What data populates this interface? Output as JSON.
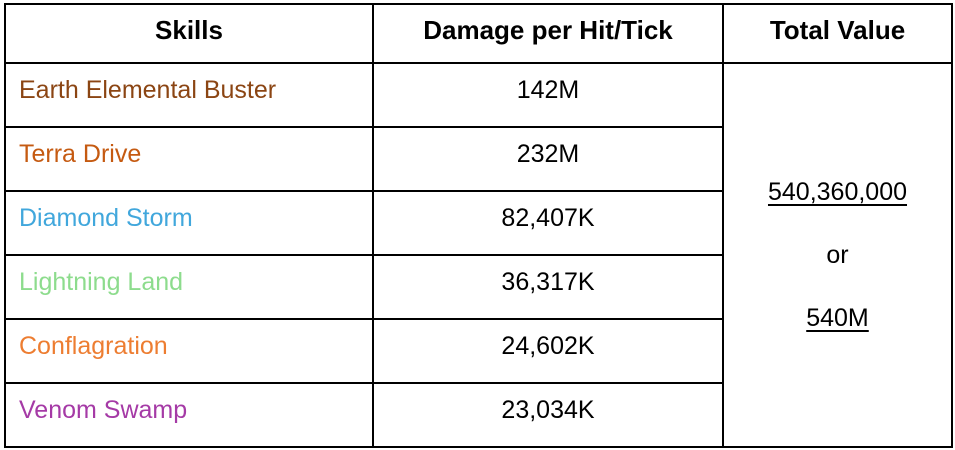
{
  "chart_data": {
    "type": "table",
    "columns": [
      "Skills",
      "Damage per Hit/Tick",
      "Total Value"
    ],
    "rows": [
      {
        "skill": "Earth Elemental Buster",
        "damage_per_hit_tick": "142M",
        "color": "#8B4513"
      },
      {
        "skill": "Terra Drive",
        "damage_per_hit_tick": "232M",
        "color": "#C55A11"
      },
      {
        "skill": "Diamond Storm",
        "damage_per_hit_tick": "82,407K",
        "color": "#41A7DC"
      },
      {
        "skill": "Lightning Land",
        "damage_per_hit_tick": "36,317K",
        "color": "#8DDC8D"
      },
      {
        "skill": "Conflagration",
        "damage_per_hit_tick": "24,602K",
        "color": "#ED7D31"
      },
      {
        "skill": "Venom Swamp",
        "damage_per_hit_tick": "23,034K",
        "color": "#A53AA6"
      }
    ],
    "total_value": {
      "exact": "540,360,000",
      "connector": "or",
      "rounded": "540M"
    },
    "layout_hints": {
      "border_color": "#000000",
      "background": "#ffffff",
      "total_cell_merged_rows": 6
    }
  }
}
